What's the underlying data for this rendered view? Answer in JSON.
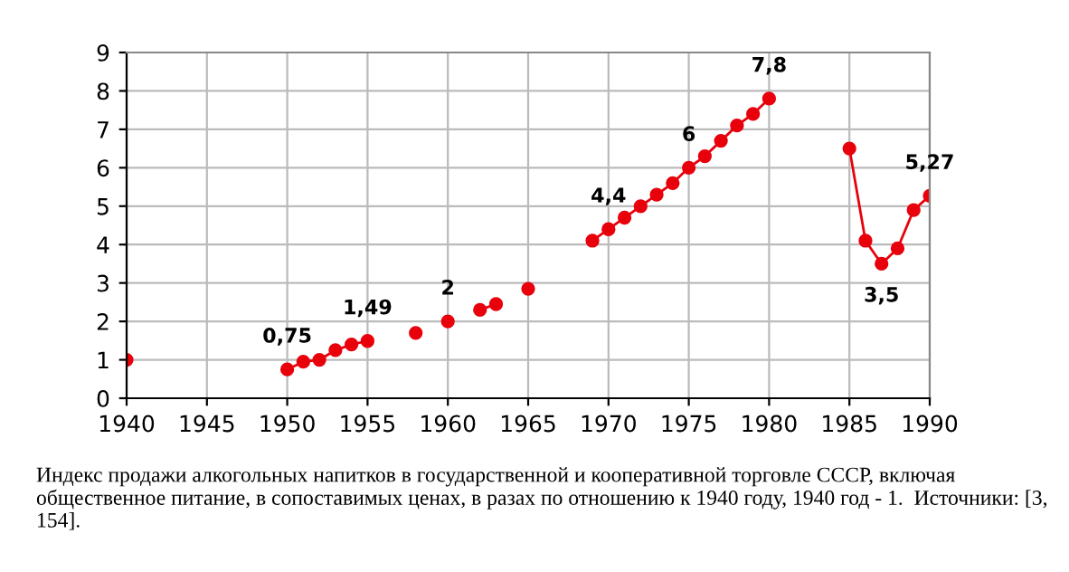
{
  "chart_data": {
    "type": "line",
    "x": [
      1940,
      1941,
      1942,
      1943,
      1944,
      1945,
      1946,
      1947,
      1948,
      1949,
      1950,
      1951,
      1952,
      1953,
      1954,
      1955,
      1956,
      1957,
      1958,
      1959,
      1960,
      1961,
      1962,
      1963,
      1964,
      1965,
      1966,
      1967,
      1968,
      1969,
      1970,
      1971,
      1972,
      1973,
      1974,
      1975,
      1976,
      1977,
      1978,
      1979,
      1980,
      1981,
      1982,
      1983,
      1984,
      1985,
      1986,
      1987,
      1988,
      1989,
      1990
    ],
    "series": [
      {
        "color": "#e8000b",
        "values": [
          1,
          null,
          null,
          null,
          null,
          null,
          null,
          null,
          null,
          null,
          0.75,
          0.95,
          1.0,
          1.25,
          1.4,
          1.49,
          null,
          null,
          1.7,
          null,
          2,
          null,
          2.3,
          2.45,
          null,
          2.85,
          null,
          null,
          null,
          4.1,
          4.4,
          4.7,
          5.0,
          5.3,
          5.6,
          6,
          6.3,
          6.7,
          7.1,
          7.4,
          7.8,
          null,
          null,
          null,
          null,
          6.5,
          4.1,
          3.5,
          3.9,
          4.9,
          5.27
        ],
        "value_labels": [
          null,
          null,
          null,
          null,
          null,
          null,
          null,
          null,
          null,
          null,
          "0,75",
          null,
          null,
          null,
          null,
          "1,49",
          null,
          null,
          null,
          null,
          "2",
          null,
          null,
          null,
          null,
          null,
          null,
          null,
          null,
          null,
          "4,4",
          null,
          null,
          null,
          null,
          "6",
          null,
          null,
          null,
          null,
          "7,8",
          null,
          null,
          null,
          null,
          null,
          null,
          "3,5",
          null,
          null,
          "5,27"
        ]
      }
    ],
    "xlim": [
      1940,
      1990
    ],
    "xticks": [
      1940,
      1945,
      1950,
      1955,
      1960,
      1965,
      1970,
      1975,
      1980,
      1985,
      1990
    ],
    "ylim": [
      0,
      9
    ],
    "yticks": [
      0,
      1,
      2,
      3,
      4,
      5,
      6,
      7,
      8,
      9
    ],
    "grid": true,
    "marker": "circle",
    "line_style": "solid",
    "annotations": [
      "Индекс продажи алкогольных напитков в государственной и кооперативной торговле СССР, включая общественное питание, в сопоставимых ценах, в разах по отношению к 1940 году, 1940 год - 1.  Источники: [3, 154]."
    ]
  }
}
